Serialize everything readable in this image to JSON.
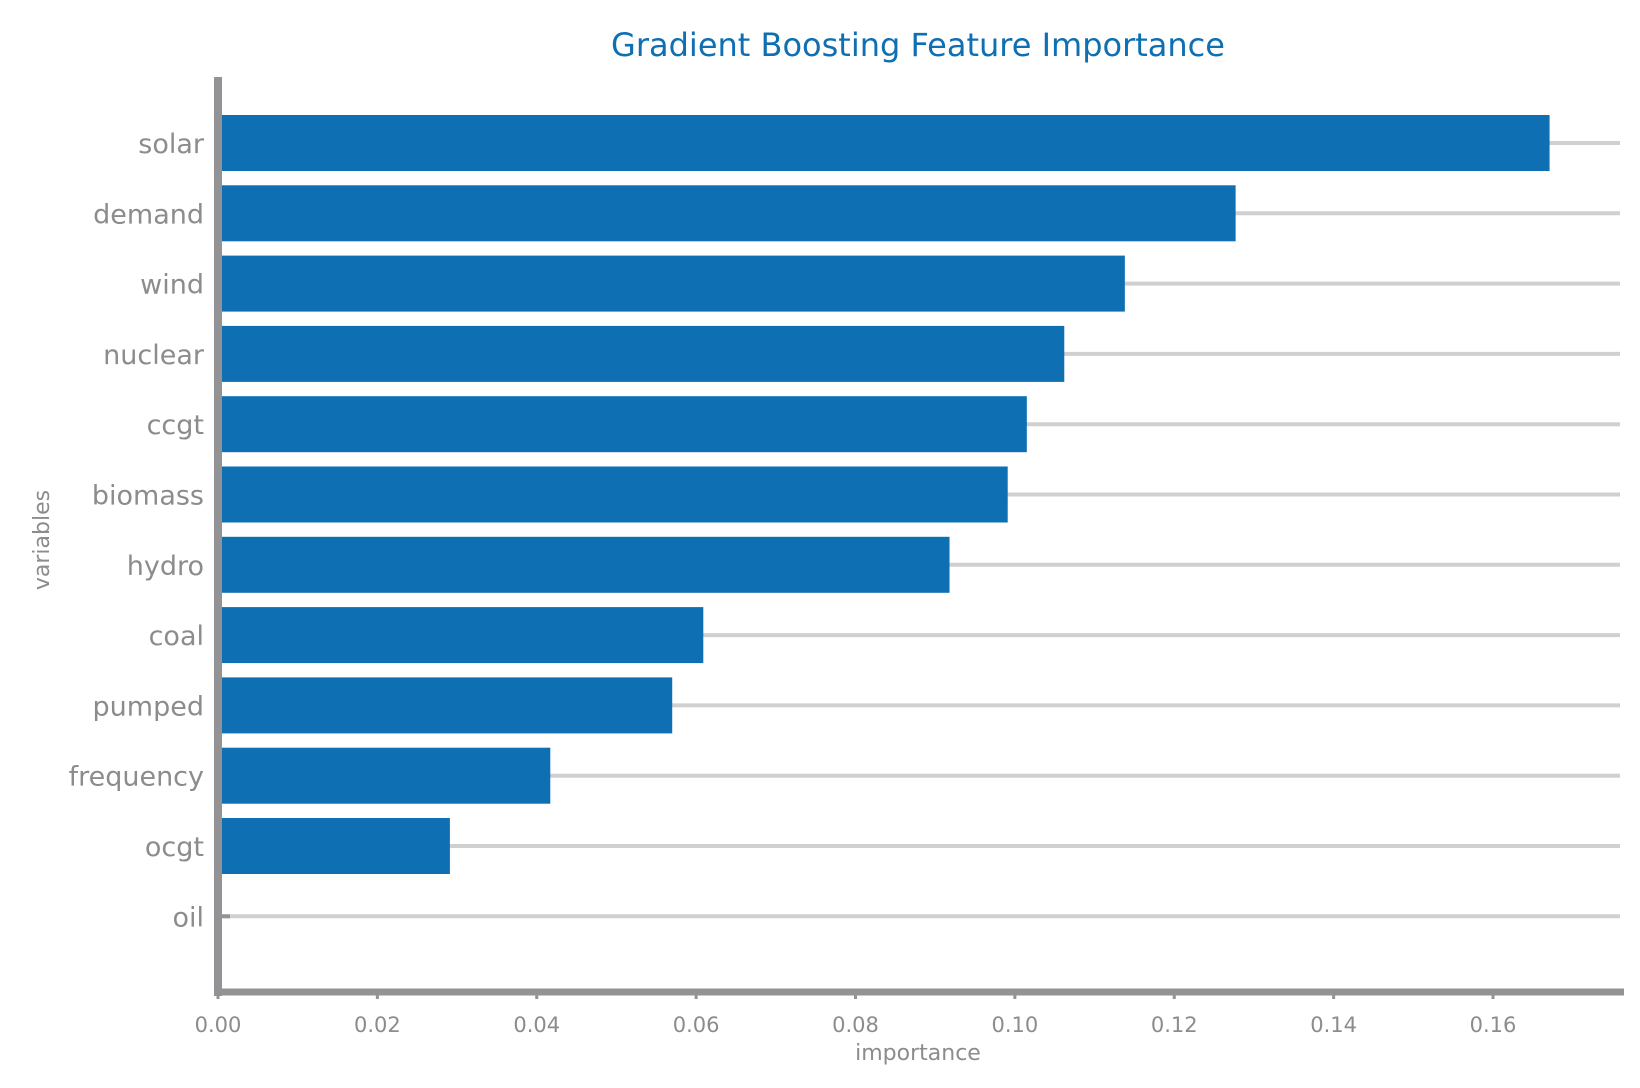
{
  "colors": {
    "bar": "#0e6fb2",
    "title": "#0e6fb2",
    "axis": "#939396",
    "grid": "#d0d0d0",
    "text": "#8c8c8c"
  },
  "chart_data": {
    "type": "bar",
    "orientation": "horizontal",
    "title": "Gradient Boosting Feature Importance",
    "xlabel": "importance",
    "ylabel": "variables",
    "categories": [
      "solar",
      "demand",
      "wind",
      "nuclear",
      "ccgt",
      "biomass",
      "hydro",
      "coal",
      "pumped",
      "frequency",
      "ocgt",
      "oil"
    ],
    "values": [
      0.1671,
      0.1277,
      0.1138,
      0.1062,
      0.1015,
      0.0991,
      0.0918,
      0.0609,
      0.057,
      0.0417,
      0.0291,
      0.0
    ],
    "xlim": [
      0.0,
      0.176
    ],
    "xticks": [
      0.0,
      0.02,
      0.04,
      0.06,
      0.08,
      0.1,
      0.12,
      0.14,
      0.16
    ],
    "xtick_labels": [
      "0.00",
      "0.02",
      "0.04",
      "0.06",
      "0.08",
      "0.10",
      "0.12",
      "0.14",
      "0.16"
    ],
    "grid": "horizontal gridlines behind bars",
    "legend": "none"
  }
}
